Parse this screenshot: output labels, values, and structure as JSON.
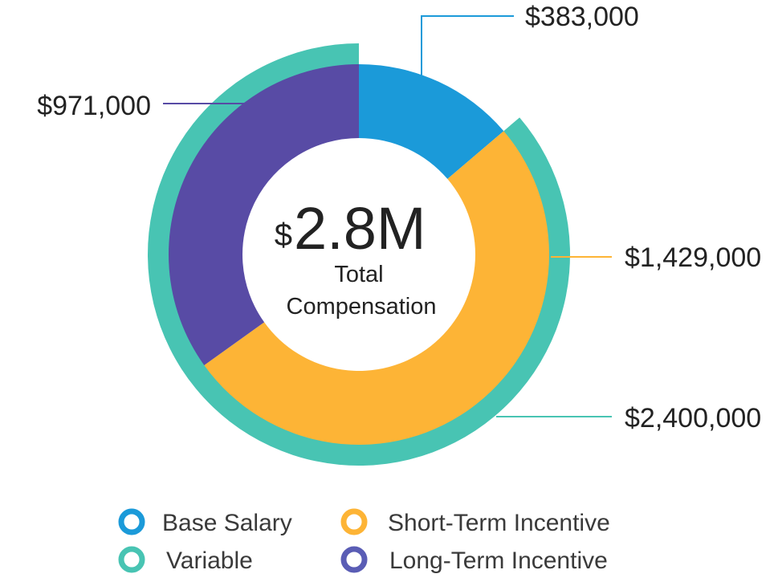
{
  "chart_data": {
    "type": "pie",
    "variant": "donut with outer ring",
    "center": {
      "currency": "$",
      "value": "2.8M",
      "line1": "Total",
      "line2": "Compensation"
    },
    "slices": [
      {
        "name": "Base Salary",
        "value": 383000,
        "label": "$383,000",
        "color": "#1b9ad9"
      },
      {
        "name": "Short-Term Incentive",
        "value": 1429000,
        "label": "$1,429,000",
        "color": "#fdb436"
      },
      {
        "name": "Long-Term Incentive",
        "value": 971000,
        "label": "$971,000",
        "color": "#584ba5"
      }
    ],
    "outer_ring": {
      "name": "Variable",
      "value": 2400000,
      "label": "$2,400,000",
      "color": "#48c4b3",
      "covers": [
        "Short-Term Incentive",
        "Long-Term Incentive"
      ]
    },
    "legend": [
      {
        "label": "Base Salary",
        "color": "#1b9ad9"
      },
      {
        "label": "Short-Term Incentive",
        "color": "#fdb436"
      },
      {
        "label": "Variable",
        "color": "#48c4b3"
      },
      {
        "label": "Long-Term Incentive",
        "color": "#5a5db5"
      }
    ],
    "legend_position": "bottom"
  }
}
